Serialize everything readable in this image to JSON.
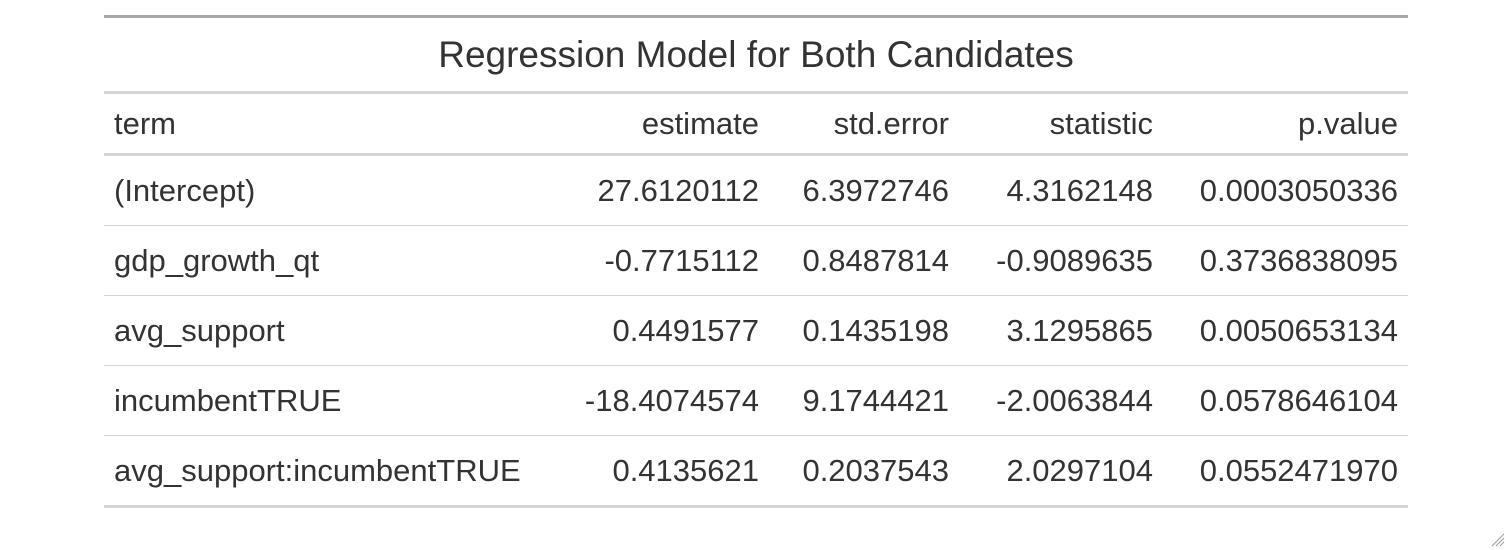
{
  "table": {
    "title": "Regression Model for Both Candidates",
    "columns": [
      "term",
      "estimate",
      "std.error",
      "statistic",
      "p.value"
    ],
    "rows": [
      [
        "(Intercept)",
        "27.6120112",
        "6.3972746",
        "4.3162148",
        "0.0003050336"
      ],
      [
        "gdp_growth_qt",
        "-0.7715112",
        "0.8487814",
        "-0.9089635",
        "0.3736838095"
      ],
      [
        "avg_support",
        "0.4491577",
        "0.1435198",
        "3.1295865",
        "0.0050653134"
      ],
      [
        "incumbentTRUE",
        "-18.4074574",
        "9.1744421",
        "-2.0063844",
        "0.0578646104"
      ],
      [
        "avg_support:incumbentTRUE",
        "0.4135621",
        "0.2037543",
        "2.0297104",
        "0.0552471970"
      ]
    ]
  },
  "colors": {
    "text": "#333333",
    "rule_top": "#a8a8a8",
    "rule": "#d3d3d3"
  }
}
